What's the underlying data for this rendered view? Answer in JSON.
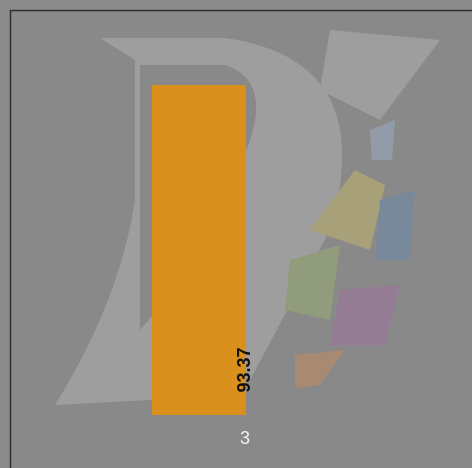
{
  "chart_data": {
    "type": "bar",
    "categories": [
      "3"
    ],
    "values": [
      93.37
    ],
    "color": "#da901c"
  }
}
